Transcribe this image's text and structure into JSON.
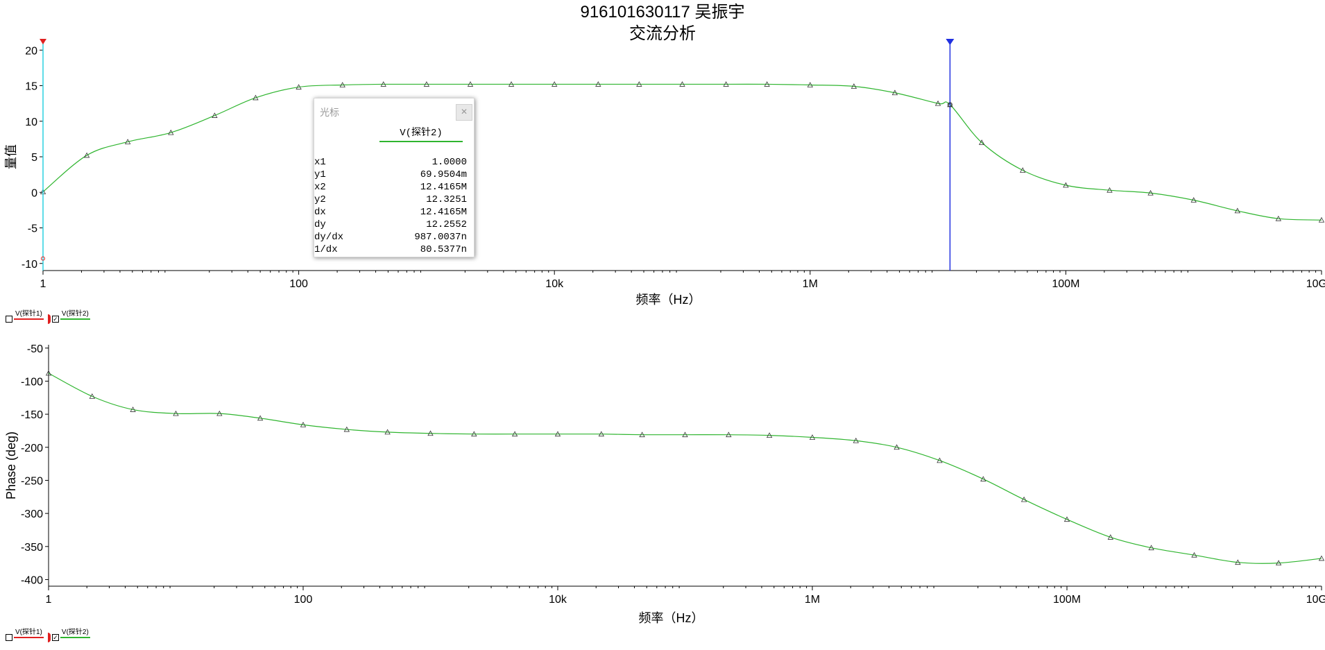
{
  "title": {
    "line1": "916101630117 吴振宇",
    "line2": "交流分析"
  },
  "colors": {
    "trace": "#2fb52f",
    "cursor1": "#2ad0e0",
    "cursor2": "#2030e0",
    "probe1": "#e02020"
  },
  "legend": {
    "items": [
      {
        "label": "V(探针1)",
        "checked": false
      },
      {
        "label": "V(探针2)",
        "checked": true
      }
    ]
  },
  "cursor_box": {
    "header": "光标",
    "close_label": "",
    "column": "V(探针2)",
    "rows": [
      {
        "k": "x1",
        "v": "1.0000"
      },
      {
        "k": "y1",
        "v": "69.9504m"
      },
      {
        "k": "x2",
        "v": "12.4165M"
      },
      {
        "k": "y2",
        "v": "12.3251"
      },
      {
        "k": "dx",
        "v": "12.4165M"
      },
      {
        "k": "dy",
        "v": "12.2552"
      },
      {
        "k": "dy/dx",
        "v": "987.0037n"
      },
      {
        "k": "1/dx",
        "v": "80.5377n"
      }
    ],
    "cursor1_label": "1",
    "cursor2_label": "2"
  },
  "chart_data": [
    {
      "type": "line",
      "xscale": "log",
      "xlim": [
        1,
        10000000000
      ],
      "ylim": [
        -11,
        21
      ],
      "xticks": [
        1,
        100,
        10000,
        1000000,
        100000000,
        10000000000
      ],
      "xticklabels": [
        "1",
        "100",
        "10k",
        "1M",
        "100M",
        "10G"
      ],
      "yticks": [
        -10,
        -5,
        0,
        5,
        10,
        15,
        20
      ],
      "xlabel": "频率（Hz）",
      "ylabel": "量值",
      "cursors_x": [
        1,
        12416500
      ],
      "series": [
        {
          "name": "V(探针2)",
          "x": [
            1,
            2.2,
            4.6,
            10,
            22,
            46,
            100,
            220,
            460,
            1000,
            2200,
            4600,
            10000,
            22000,
            46000,
            100000,
            220000,
            460000,
            1000000,
            2200000,
            4600000,
            10000000,
            12416500,
            22000000,
            46000000,
            100000000,
            220000000,
            460000000,
            1000000000,
            2200000000,
            4600000000,
            10000000000
          ],
          "y": [
            0.07,
            5.2,
            7.1,
            8.4,
            10.8,
            13.3,
            14.8,
            15.1,
            15.2,
            15.2,
            15.2,
            15.2,
            15.2,
            15.2,
            15.2,
            15.2,
            15.2,
            15.2,
            15.1,
            14.9,
            14.0,
            12.5,
            12.33,
            7.0,
            3.1,
            1.0,
            0.3,
            -0.1,
            -1.1,
            -2.6,
            -3.7,
            -3.9
          ]
        }
      ]
    },
    {
      "type": "line",
      "xscale": "log",
      "xlim": [
        1,
        10000000000
      ],
      "ylim": [
        -410,
        -45
      ],
      "xticks": [
        1,
        100,
        10000,
        1000000,
        100000000,
        10000000000
      ],
      "xticklabels": [
        "1",
        "100",
        "10k",
        "1M",
        "100M",
        "10G"
      ],
      "yticks": [
        -50,
        -100,
        -150,
        -200,
        -250,
        -300,
        -350,
        -400
      ],
      "xlabel": "频率（Hz）",
      "ylabel": "Phase (deg)",
      "series": [
        {
          "name": "V(探针2)",
          "x": [
            1,
            2.2,
            4.6,
            10,
            22,
            46,
            100,
            220,
            460,
            1000,
            2200,
            4600,
            10000,
            22000,
            46000,
            100000,
            220000,
            460000,
            1000000,
            2200000,
            4600000,
            10000000,
            22000000,
            46000000,
            100000000,
            220000000,
            460000000,
            1000000000,
            2200000000,
            4600000000,
            10000000000
          ],
          "y": [
            -88,
            -123,
            -143,
            -149,
            -149,
            -156,
            -166,
            -173,
            -177,
            -179,
            -180,
            -180,
            -180,
            -180,
            -181,
            -181,
            -181,
            -182,
            -185,
            -190,
            -200,
            -220,
            -248,
            -279,
            -309,
            -336,
            -352,
            -363,
            -374,
            -375,
            -368
          ]
        }
      ]
    }
  ]
}
